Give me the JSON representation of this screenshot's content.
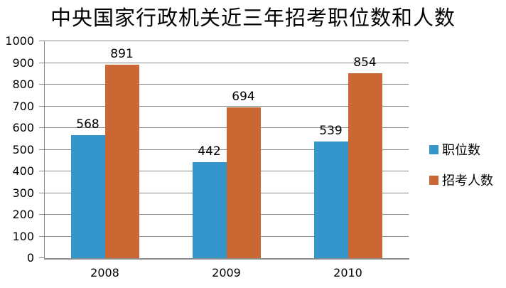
{
  "chart_data": {
    "type": "bar",
    "title": "中央国家行政机关近三年招考职位数和人数",
    "categories": [
      "2008",
      "2009",
      "2010"
    ],
    "series": [
      {
        "name": "职位数",
        "color": "#3596CB",
        "values": [
          568,
          442,
          539
        ]
      },
      {
        "name": "招考人数",
        "color": "#CB6733",
        "values": [
          891,
          694,
          854
        ]
      }
    ],
    "ylim": [
      0,
      1000
    ],
    "ytick_step": 100,
    "yticks": [
      "0",
      "100",
      "200",
      "300",
      "400",
      "500",
      "600",
      "700",
      "800",
      "900",
      "1000"
    ],
    "grid": true,
    "gridline_color": "#8B8B8B",
    "axis_color": "#8B8B8B",
    "text_color": "#000000",
    "legend_position": "right",
    "data_labels": true,
    "xlabel": "",
    "ylabel": ""
  }
}
